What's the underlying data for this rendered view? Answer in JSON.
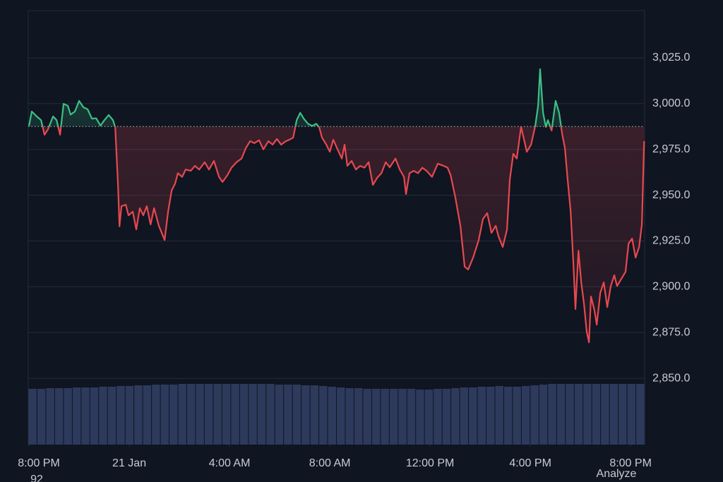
{
  "chart_data": {
    "type": "baseline-line",
    "x": [
      0,
      0.11,
      0.31,
      0.48,
      0.62,
      0.76,
      0.96,
      1.1,
      1.24,
      1.38,
      1.55,
      1.66,
      1.83,
      2,
      2.17,
      2.34,
      2.51,
      2.68,
      2.85,
      3.01,
      3.18,
      3.35,
      3.44,
      3.55,
      3.61,
      3.69,
      3.86,
      3.97,
      4.14,
      4.28,
      4.42,
      4.56,
      4.7,
      4.85,
      4.99,
      5.18,
      5.41,
      5.55,
      5.69,
      5.83,
      5.94,
      6.11,
      6.25,
      6.45,
      6.62,
      6.79,
      7.01,
      7.18,
      7.38,
      7.58,
      7.72,
      7.92,
      8.08,
      8.28,
      8.48,
      8.65,
      8.82,
      8.99,
      9.18,
      9.35,
      9.55,
      9.72,
      9.89,
      10.06,
      10.25,
      10.39,
      10.54,
      10.68,
      10.82,
      10.96,
      11.13,
      11.3,
      11.46,
      11.58,
      11.69,
      11.86,
      12,
      12.14,
      12.31,
      12.48,
      12.59,
      12.7,
      12.87,
      13.04,
      13.21,
      13.38,
      13.55,
      13.72,
      13.89,
      14.06,
      14.23,
      14.39,
      14.62,
      14.79,
      14.96,
      15.04,
      15.18,
      15.35,
      15.52,
      15.69,
      15.86,
      16.08,
      16.31,
      16.54,
      16.7,
      16.82,
      17.01,
      17.21,
      17.38,
      17.52,
      17.72,
      17.94,
      18.11,
      18.28,
      18.45,
      18.62,
      18.73,
      18.9,
      19.07,
      19.18,
      19.32,
      19.46,
      19.63,
      19.75,
      19.86,
      20.03,
      20.2,
      20.31,
      20.39,
      20.51,
      20.62,
      20.7,
      20.85,
      21.01,
      21.15,
      21.27,
      21.38,
      21.49,
      21.61,
      21.72,
      21.8,
      21.92,
      22.03,
      22.14,
      22.25,
      22.34,
      22.42,
      22.56,
      22.65,
      22.79,
      22.93,
      23.07,
      23.21,
      23.35,
      23.46,
      23.63,
      23.8,
      23.92,
      24.06,
      24.2,
      24.34,
      24.45,
      24.54
    ],
    "values": [
      2987.8,
      2995.7,
      2993,
      2991,
      2983,
      2986,
      2993,
      2991,
      2983,
      2999.9,
      2998.8,
      2994,
      2995.7,
      3001.5,
      2998,
      2996.9,
      2991.8,
      2992,
      2988,
      2991,
      2993.8,
      2991,
      2987,
      2956,
      2933,
      2944,
      2944.8,
      2939,
      2941,
      2931.3,
      2942.9,
      2939,
      2944,
      2934,
      2942.9,
      2933.3,
      2925.5,
      2941,
      2952.5,
      2956.4,
      2962,
      2960,
      2964,
      2963.3,
      2966,
      2964,
      2968,
      2964,
      2968.7,
      2960,
      2957.2,
      2961,
      2965,
      2968,
      2970,
      2975.7,
      2979.5,
      2978.4,
      2980,
      2975,
      2979.5,
      2977.6,
      2980.7,
      2977.6,
      2979.5,
      2980.3,
      2981.4,
      2991,
      2995,
      2991.8,
      2989,
      2987.8,
      2989,
      2987,
      2981.4,
      2977.6,
      2973.7,
      2980.3,
      2975,
      2970,
      2977.6,
      2966,
      2968.7,
      2964,
      2966,
      2965,
      2968,
      2955.6,
      2959.5,
      2962,
      2968,
      2965.2,
      2970,
      2964,
      2960,
      2950.6,
      2962,
      2963.3,
      2962,
      2965,
      2963.3,
      2960,
      2967.2,
      2966,
      2965,
      2961,
      2948.7,
      2933.3,
      2911,
      2909.4,
      2916,
      2925.5,
      2937,
      2940.2,
      2929.4,
      2933.3,
      2927.5,
      2921.7,
      2931.3,
      2958.3,
      2972.6,
      2970,
      2987.2,
      2980.3,
      2973.7,
      2977.6,
      2988,
      2998.8,
      3018.8,
      2994.9,
      2987.2,
      2991,
      2985.3,
      3001.5,
      2994.9,
      2983.4,
      2975.7,
      2958.3,
      2941,
      2912,
      2887.8,
      2919.7,
      2902.4,
      2890.8,
      2875.4,
      2869.6,
      2894.7,
      2887,
      2879.3,
      2896.6,
      2902.4,
      2888.9,
      2900.4,
      2906.3,
      2900.4,
      2904.3,
      2908.2,
      2923.6,
      2926.3,
      2915.9,
      2921.7,
      2934,
      2979.5
    ],
    "baseline": 2987.5,
    "up_color": "#3dbf84",
    "down_color": "#e8484f",
    "xlim": [
      -0.03,
      24.56
    ],
    "xticks": [
      {
        "value": 0,
        "label": "8:00 PM"
      },
      {
        "value": 4,
        "label": "21 Jan"
      },
      {
        "value": 8,
        "label": "4:00 AM"
      },
      {
        "value": 12,
        "label": "8:00 AM"
      },
      {
        "value": 16,
        "label": "12:00 PM"
      },
      {
        "value": 20,
        "label": "4:00 PM"
      },
      {
        "value": 24,
        "label": "8:00 PM"
      }
    ],
    "ylim": [
      2813.8,
      3050.8
    ],
    "yticks": [
      {
        "value": 2850,
        "label": "2,850.0"
      },
      {
        "value": 2875,
        "label": "2,875.0"
      },
      {
        "value": 2900,
        "label": "2,900.0"
      },
      {
        "value": 2925,
        "label": "2,925.0"
      },
      {
        "value": 2950,
        "label": "2,950.0"
      },
      {
        "value": 2975,
        "label": "2,975.0"
      },
      {
        "value": 3000,
        "label": "3,000.0"
      },
      {
        "value": 3025,
        "label": "3,025.0"
      }
    ],
    "grid": true,
    "volume": {
      "color": "#2e3a5c",
      "ylim": [
        0,
        100
      ],
      "values": [
        79,
        79,
        80,
        80,
        80,
        81,
        81,
        81,
        82,
        82,
        83,
        83,
        84,
        84,
        85,
        85,
        85,
        86,
        86,
        86,
        86,
        86,
        86,
        86,
        86,
        86,
        86,
        86,
        85,
        85,
        85,
        84,
        84,
        83,
        82,
        81,
        80,
        80,
        79,
        79,
        79,
        79,
        79,
        79,
        78,
        78,
        79,
        79,
        80,
        81,
        81,
        82,
        82,
        83,
        82,
        82,
        83,
        84,
        85,
        86,
        86,
        86,
        86,
        86,
        86,
        86,
        86,
        86,
        86,
        86
      ]
    }
  },
  "footer": {
    "left_text": "92",
    "right_text": "Analyze"
  }
}
